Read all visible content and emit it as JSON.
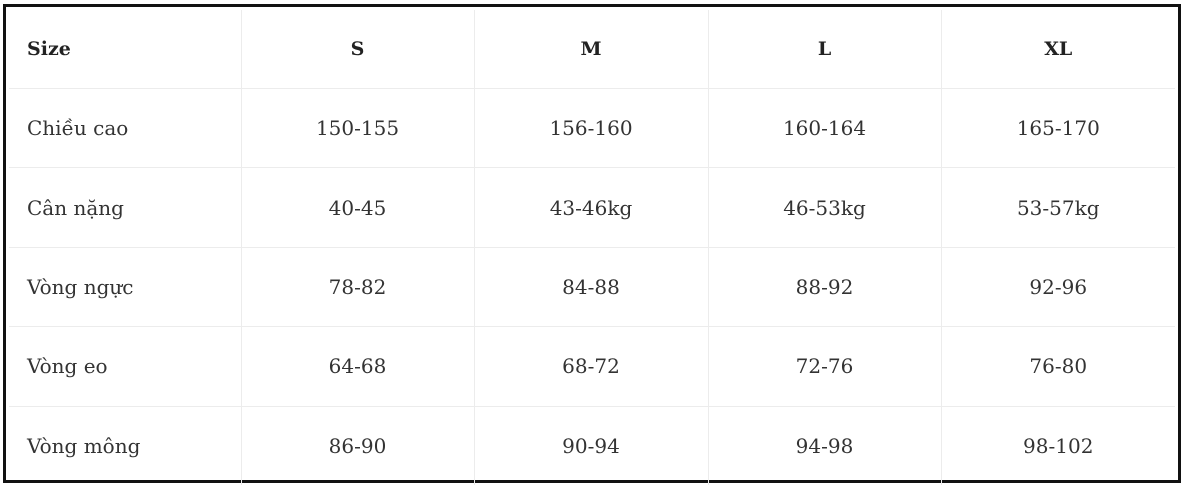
{
  "table": {
    "headers": [
      "Size",
      "S",
      "M",
      "L",
      "XL"
    ],
    "rows": [
      [
        "Chiều cao",
        "150-155",
        "156-160",
        "160-164",
        "165-170"
      ],
      [
        "Cân nặng",
        "40-45",
        "43-46kg",
        "46-53kg",
        "53-57kg"
      ],
      [
        "Vòng ngực",
        "78-82",
        "84-88",
        "88-92",
        "92-96"
      ],
      [
        "Vòng eo",
        "64-68",
        "68-72",
        "72-76",
        "76-80"
      ],
      [
        "Vòng mông",
        "86-90",
        "90-94",
        "94-98",
        "98-102"
      ]
    ]
  },
  "colors": {
    "frame_border": "#111111",
    "grid_line": "#ececec",
    "text": "#333333"
  }
}
